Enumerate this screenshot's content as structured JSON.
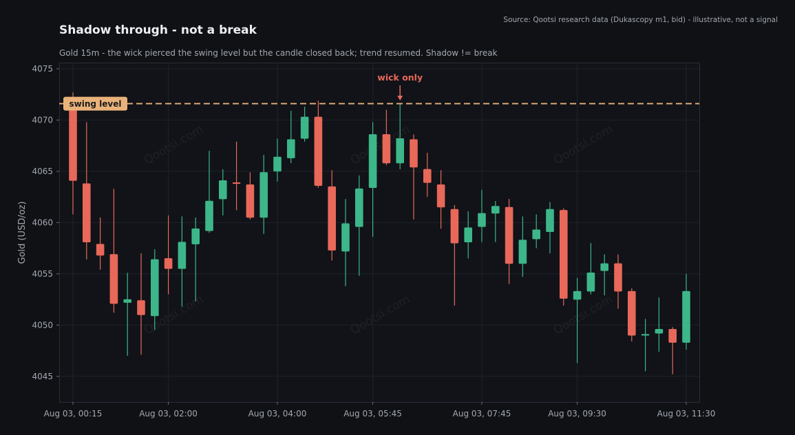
{
  "header": {
    "title": "Shadow through - not a break",
    "subtitle": "Gold 15m - the wick pierced the swing level but the candle closed back; trend resumed. Shadow != break",
    "source": "Source: Qootsi research data (Dukascopy m1, bid) - illustrative, not a signal"
  },
  "watermark": "Qootsi.com",
  "colors": {
    "background": "#0f1115",
    "plot_bg": "#111318",
    "up": "#3db68a",
    "down": "#e8685a",
    "level": "#e9b27a",
    "grid": "#1f232b",
    "text": "#a3a8b0"
  },
  "chart_data": {
    "type": "candlestick",
    "title": "Shadow through - not a break",
    "ylabel": "Gold (USD/oz)",
    "ylim": [
      4042.5,
      4075.6
    ],
    "yticks": [
      4045,
      4050,
      4055,
      4060,
      4065,
      4070,
      4075
    ],
    "x_tick_labels": [
      "Aug 03, 00:15",
      "Aug 03, 02:00",
      "Aug 03, 04:00",
      "Aug 03, 05:45",
      "Aug 03, 07:45",
      "Aug 03, 09:30",
      "Aug 03, 11:30"
    ],
    "x_tick_indices": [
      0,
      7,
      15,
      22,
      30,
      37,
      45
    ],
    "grid": true,
    "swing_level": {
      "value": 4071.6,
      "label": "swing level"
    },
    "annotation": {
      "text": "wick only",
      "candle_index": 24
    },
    "candles": [
      {
        "o": 4071.6,
        "h": 4072.7,
        "l": 4060.8,
        "c": 4064.1
      },
      {
        "o": 4063.8,
        "h": 4069.8,
        "l": 4056.4,
        "c": 4058.1
      },
      {
        "o": 4057.9,
        "h": 4060.5,
        "l": 4055.4,
        "c": 4056.8
      },
      {
        "o": 4056.9,
        "h": 4063.3,
        "l": 4051.2,
        "c": 4052.1
      },
      {
        "o": 4052.2,
        "h": 4055.1,
        "l": 4047.0,
        "c": 4052.5
      },
      {
        "o": 4052.4,
        "h": 4057.0,
        "l": 4047.1,
        "c": 4051.0
      },
      {
        "o": 4050.9,
        "h": 4057.4,
        "l": 4049.5,
        "c": 4056.4
      },
      {
        "o": 4056.5,
        "h": 4060.7,
        "l": 4053.0,
        "c": 4055.5
      },
      {
        "o": 4055.5,
        "h": 4060.6,
        "l": 4051.8,
        "c": 4058.1
      },
      {
        "o": 4057.9,
        "h": 4060.5,
        "l": 4052.3,
        "c": 4059.4
      },
      {
        "o": 4059.2,
        "h": 4067.0,
        "l": 4059.0,
        "c": 4062.1
      },
      {
        "o": 4062.3,
        "h": 4065.2,
        "l": 4060.7,
        "c": 4064.1
      },
      {
        "o": 4063.9,
        "h": 4067.9,
        "l": 4061.2,
        "c": 4063.8
      },
      {
        "o": 4063.7,
        "h": 4064.9,
        "l": 4060.3,
        "c": 4060.5
      },
      {
        "o": 4060.5,
        "h": 4066.6,
        "l": 4058.9,
        "c": 4064.9
      },
      {
        "o": 4065.0,
        "h": 4068.2,
        "l": 4064.0,
        "c": 4066.4
      },
      {
        "o": 4066.3,
        "h": 4070.9,
        "l": 4065.8,
        "c": 4068.1
      },
      {
        "o": 4068.2,
        "h": 4071.3,
        "l": 4067.9,
        "c": 4070.3
      },
      {
        "o": 4070.3,
        "h": 4071.9,
        "l": 4063.4,
        "c": 4063.6
      },
      {
        "o": 4063.5,
        "h": 4065.1,
        "l": 4056.3,
        "c": 4057.3
      },
      {
        "o": 4057.2,
        "h": 4062.3,
        "l": 4053.8,
        "c": 4059.9
      },
      {
        "o": 4059.6,
        "h": 4064.6,
        "l": 4054.8,
        "c": 4063.3
      },
      {
        "o": 4063.4,
        "h": 4069.8,
        "l": 4058.6,
        "c": 4068.6
      },
      {
        "o": 4068.6,
        "h": 4071.0,
        "l": 4065.6,
        "c": 4065.8
      },
      {
        "o": 4065.8,
        "h": 4071.6,
        "l": 4065.2,
        "c": 4068.2
      },
      {
        "o": 4068.1,
        "h": 4068.6,
        "l": 4060.3,
        "c": 4065.4
      },
      {
        "o": 4065.2,
        "h": 4066.8,
        "l": 4062.5,
        "c": 4063.9
      },
      {
        "o": 4063.7,
        "h": 4065.1,
        "l": 4059.4,
        "c": 4061.5
      },
      {
        "o": 4061.3,
        "h": 4061.7,
        "l": 4051.9,
        "c": 4058.0
      },
      {
        "o": 4058.1,
        "h": 4061.1,
        "l": 4056.5,
        "c": 4059.5
      },
      {
        "o": 4059.6,
        "h": 4063.2,
        "l": 4058.1,
        "c": 4060.9
      },
      {
        "o": 4060.9,
        "h": 4062.1,
        "l": 4058.1,
        "c": 4061.6
      },
      {
        "o": 4061.5,
        "h": 4062.3,
        "l": 4054.0,
        "c": 4056.0
      },
      {
        "o": 4056.0,
        "h": 4060.6,
        "l": 4054.7,
        "c": 4058.3
      },
      {
        "o": 4058.4,
        "h": 4060.8,
        "l": 4057.5,
        "c": 4059.3
      },
      {
        "o": 4059.1,
        "h": 4062.0,
        "l": 4057.0,
        "c": 4061.3
      },
      {
        "o": 4061.2,
        "h": 4061.4,
        "l": 4051.9,
        "c": 4052.6
      },
      {
        "o": 4052.5,
        "h": 4054.6,
        "l": 4046.3,
        "c": 4053.3
      },
      {
        "o": 4053.3,
        "h": 4058.0,
        "l": 4053.0,
        "c": 4055.1
      },
      {
        "o": 4055.3,
        "h": 4056.9,
        "l": 4052.9,
        "c": 4056.0
      },
      {
        "o": 4056.0,
        "h": 4056.9,
        "l": 4051.6,
        "c": 4053.3
      },
      {
        "o": 4053.3,
        "h": 4053.6,
        "l": 4048.4,
        "c": 4049.0
      },
      {
        "o": 4049.1,
        "h": 4050.6,
        "l": 4045.5,
        "c": 4049.1
      },
      {
        "o": 4049.2,
        "h": 4052.7,
        "l": 4047.4,
        "c": 4049.6
      },
      {
        "o": 4049.6,
        "h": 4049.8,
        "l": 4045.2,
        "c": 4048.3
      },
      {
        "o": 4048.3,
        "h": 4055.0,
        "l": 4047.6,
        "c": 4053.3
      }
    ]
  }
}
